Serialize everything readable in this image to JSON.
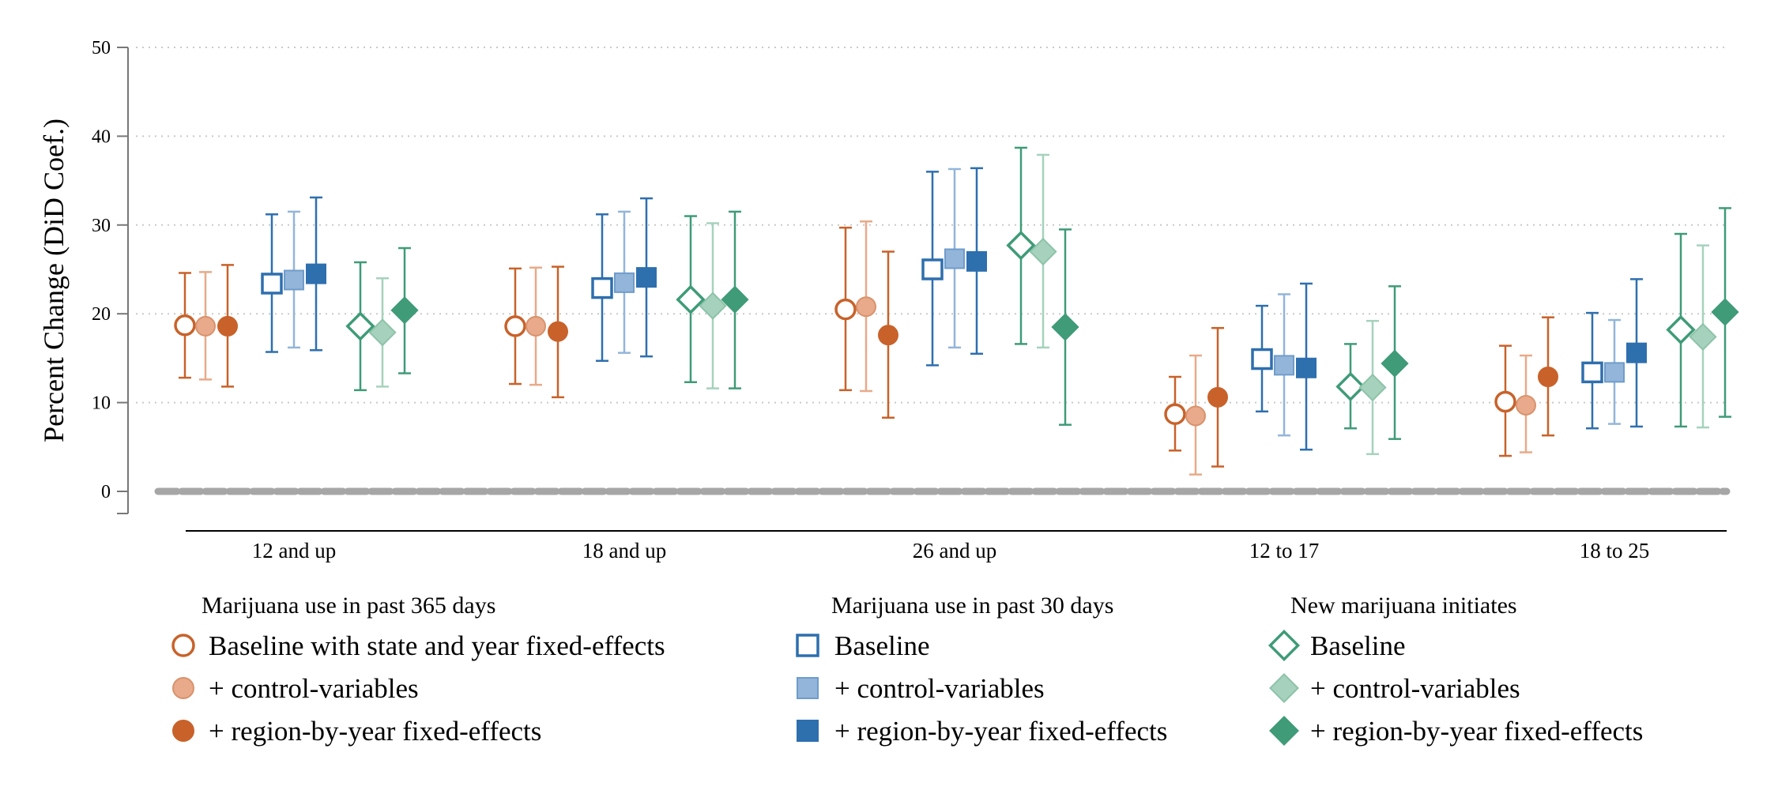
{
  "chart_data": {
    "type": "scatter",
    "subtype": "coefficient plot with confidence intervals",
    "title": "",
    "xlabel": "",
    "ylabel": "Percent Change (DiD Coef.)",
    "ylim": [
      0,
      50
    ],
    "yticks": [
      "0",
      "10",
      "20",
      "30",
      "40",
      "50"
    ],
    "grid": "horizontal dotted",
    "zero_line": "thick dashed gray",
    "categories": [
      "12 and up",
      "18 and up",
      "26 and up",
      "12 to 17",
      "18 to 25"
    ],
    "groups": [
      {
        "title": "Marijuana use in past 365 days",
        "marker": "circle",
        "series": [
          {
            "name": "Baseline with state and year fixed-effects",
            "fill": "open",
            "color": "#c8622a",
            "values": [
              18.7,
              18.6,
              20.5,
              8.7,
              10.1
            ],
            "ci_low": [
              12.8,
              12.1,
              11.4,
              4.6,
              4.0
            ],
            "ci_high": [
              24.6,
              25.1,
              29.7,
              12.9,
              16.4
            ]
          },
          {
            "name": "+ control-variables",
            "fill": "light",
            "color": "#e8aa8a",
            "values": [
              18.6,
              18.6,
              20.8,
              8.5,
              9.7
            ],
            "ci_low": [
              12.6,
              12.0,
              11.3,
              1.9,
              4.4
            ],
            "ci_high": [
              24.7,
              25.2,
              30.4,
              15.3,
              15.3
            ]
          },
          {
            "name": "+ region-by-year fixed-effects",
            "fill": "solid",
            "color": "#c8622a",
            "values": [
              18.6,
              18.0,
              17.6,
              10.6,
              12.9
            ],
            "ci_low": [
              11.8,
              10.6,
              8.3,
              2.8,
              6.3
            ],
            "ci_high": [
              25.5,
              25.3,
              27.0,
              18.4,
              19.6
            ]
          }
        ]
      },
      {
        "title": "Marijuana use in past 30 days",
        "marker": "square",
        "series": [
          {
            "name": "Baseline",
            "fill": "open",
            "color": "#2e6fae",
            "values": [
              23.4,
              22.9,
              25.0,
              14.9,
              13.4
            ],
            "ci_low": [
              15.7,
              14.7,
              14.2,
              9.0,
              7.1
            ],
            "ci_high": [
              31.2,
              31.2,
              36.0,
              20.9,
              20.1
            ]
          },
          {
            "name": "+ control-variables",
            "fill": "light",
            "color": "#93b5da",
            "values": [
              23.8,
              23.5,
              26.2,
              14.2,
              13.4
            ],
            "ci_low": [
              16.2,
              15.6,
              16.2,
              6.3,
              7.6
            ],
            "ci_high": [
              31.5,
              31.5,
              36.3,
              22.2,
              19.3
            ]
          },
          {
            "name": "+ region-by-year fixed-effects",
            "fill": "solid",
            "color": "#2e6fae",
            "values": [
              24.5,
              24.1,
              25.9,
              13.9,
              15.6
            ],
            "ci_low": [
              15.9,
              15.2,
              15.5,
              4.7,
              7.3
            ],
            "ci_high": [
              33.1,
              33.0,
              36.4,
              23.4,
              23.9
            ]
          }
        ]
      },
      {
        "title": "New marijuana initiates",
        "marker": "diamond",
        "series": [
          {
            "name": "Baseline",
            "fill": "open",
            "color": "#3f9b78",
            "values": [
              18.6,
              21.6,
              27.7,
              11.8,
              18.2
            ],
            "ci_low": [
              11.4,
              12.3,
              16.6,
              7.1,
              7.3
            ],
            "ci_high": [
              25.8,
              31.0,
              38.7,
              16.6,
              29.0
            ]
          },
          {
            "name": "+ control-variables",
            "fill": "light",
            "color": "#a6d2bd",
            "values": [
              17.9,
              20.9,
              27.0,
              11.7,
              17.4
            ],
            "ci_low": [
              11.8,
              11.6,
              16.2,
              4.2,
              7.2
            ],
            "ci_high": [
              24.0,
              30.2,
              37.9,
              19.2,
              27.7
            ]
          },
          {
            "name": "+ region-by-year fixed-effects",
            "fill": "solid",
            "color": "#3f9b78",
            "values": [
              20.4,
              21.6,
              18.5,
              14.4,
              20.2
            ],
            "ci_low": [
              13.3,
              11.6,
              7.5,
              5.9,
              8.4
            ],
            "ci_high": [
              27.4,
              31.5,
              29.5,
              23.1,
              31.9
            ]
          }
        ]
      }
    ]
  }
}
